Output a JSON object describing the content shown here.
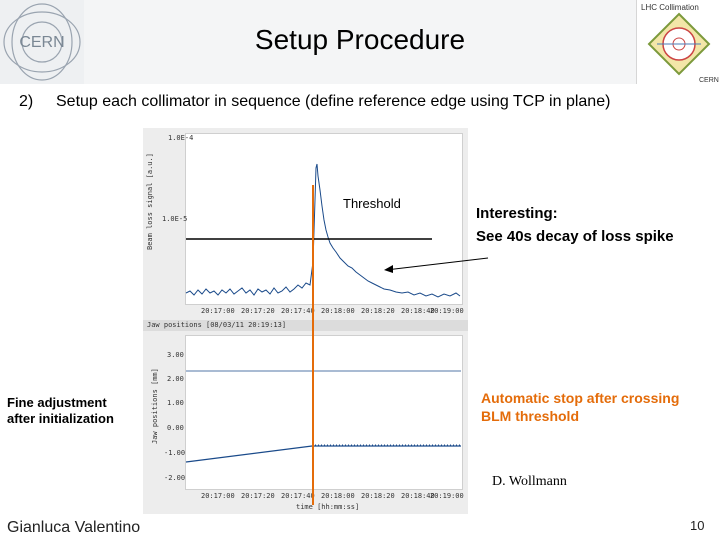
{
  "header": {
    "title": "Setup Procedure",
    "cern_logo_text": "CERN",
    "lhc_logo_text": "LHC Collimation",
    "lhc_logo_sub": "CERN"
  },
  "step": {
    "number": "2)",
    "text": "Setup each collimator in sequence (define reference edge using TCP in plane)"
  },
  "plot": {
    "top": {
      "ylabel": "Beam loss signal [a.u.]",
      "yticks": [
        "1.0E-4",
        "1.0E-5"
      ],
      "xticks": [
        "20:17:00",
        "20:17:20",
        "20:17:40",
        "20:18:00",
        "20:18:20",
        "20:18:40",
        "20:19:00"
      ]
    },
    "bottom": {
      "header": "Jaw positions [08/03/11 20:19:13]",
      "ylabel": "Jaw positions [mm]",
      "yticks": [
        "3.00",
        "2.00",
        "1.00",
        "0.00",
        "-1.00",
        "-2.00"
      ],
      "xticks": [
        "20:17:00",
        "20:17:20",
        "20:17:40",
        "20:18:00",
        "20:18:20",
        "20:18:40",
        "20:19:00"
      ],
      "xlabel": "time [hh:mm:ss]"
    }
  },
  "annotations": {
    "threshold": "Threshold",
    "interesting_title": "Interesting:",
    "interesting_text": "See 40s decay of loss spike",
    "fine_line1": "Fine adjustment",
    "fine_line2": "after initialization",
    "auto_line1": "Automatic stop after crossing",
    "auto_line2": "BLM threshold"
  },
  "credit": "D. Wollmann",
  "footer": {
    "presenter": "Gianluca Valentino",
    "page": "10"
  },
  "colors": {
    "accent": "#e46c0a",
    "trace": "#1a4a8a"
  }
}
